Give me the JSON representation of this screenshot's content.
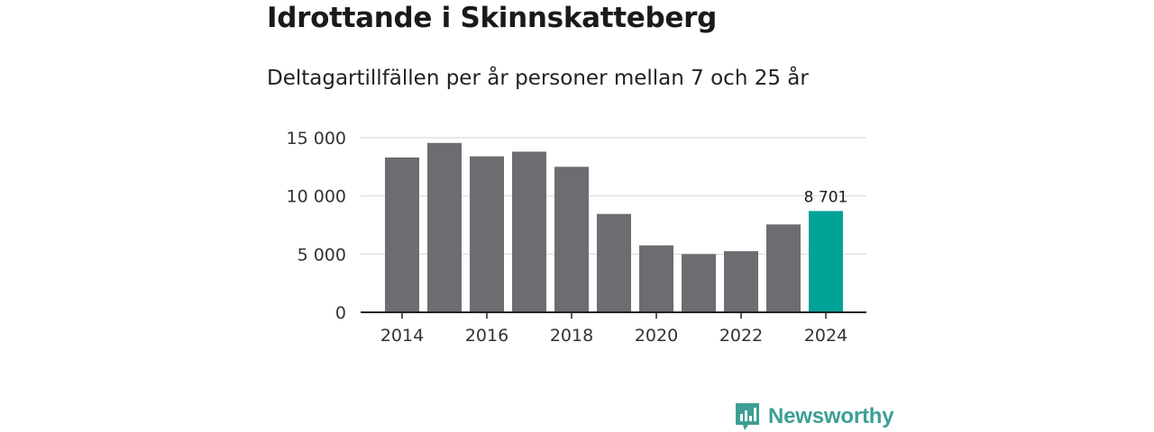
{
  "title": "Idrottande i Skinnskatteberg",
  "subtitle": "Deltagartillfällen per år personer mellan 7 och 25 år",
  "chart_data": {
    "type": "bar",
    "categories": [
      "2014",
      "2015",
      "2016",
      "2017",
      "2018",
      "2019",
      "2020",
      "2021",
      "2022",
      "2023",
      "2024"
    ],
    "values": [
      13300,
      14550,
      13400,
      13800,
      12500,
      8450,
      5750,
      5000,
      5250,
      7550,
      8701
    ],
    "x_tick_labels": [
      "2014",
      "2016",
      "2018",
      "2020",
      "2022",
      "2024"
    ],
    "y_ticks": [
      0,
      5000,
      10000,
      15000
    ],
    "y_tick_labels": [
      "0",
      "5 000",
      "10 000",
      "15 000"
    ],
    "ylim": [
      0,
      15000
    ],
    "grid": true,
    "highlight_index": 10,
    "highlight_label": "8 701",
    "xlabel": "",
    "ylabel": "",
    "colors": {
      "bar": "#6d6c71",
      "highlight": "#00a398",
      "grid": "#d9d9d9",
      "axis": "#222222"
    }
  },
  "brand": {
    "name": "Newsworthy",
    "logo_icon": "newsworthy-logo-icon",
    "color": "#3d9f95"
  }
}
